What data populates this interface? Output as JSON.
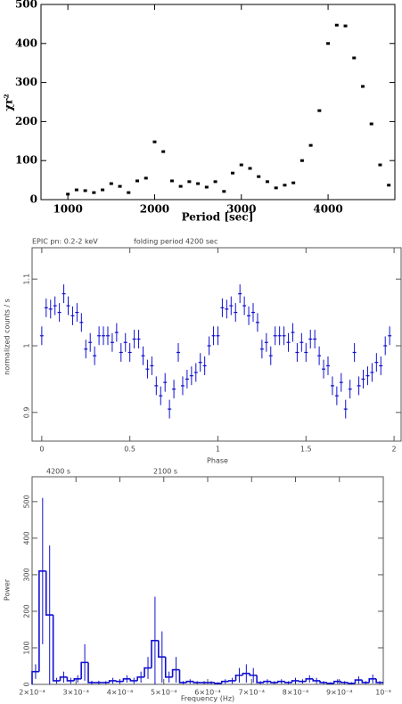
{
  "chart_data": [
    {
      "type": "scatter",
      "x_label": "Period [sec]",
      "y_label": "χr²",
      "color": "#000000",
      "x": [
        1000,
        1100,
        1200,
        1300,
        1400,
        1500,
        1600,
        1700,
        1800,
        1900,
        2000,
        2100,
        2200,
        2300,
        2400,
        2500,
        2600,
        2700,
        2800,
        2900,
        3000,
        3100,
        3200,
        3300,
        3400,
        3500,
        3600,
        3700,
        3800,
        3900,
        4000,
        4100,
        4200,
        4300,
        4400,
        4500,
        4600,
        4700
      ],
      "values": [
        14,
        25,
        23,
        18,
        25,
        41,
        34,
        18,
        48,
        55,
        148,
        123,
        48,
        34,
        46,
        41,
        32,
        46,
        21,
        68,
        89,
        80,
        59,
        46,
        30,
        37,
        43,
        100,
        139,
        228,
        400,
        447,
        445,
        363,
        290,
        194,
        89,
        37
      ],
      "xlim": [
        690,
        4770
      ],
      "ylim": [
        0,
        500
      ],
      "xticks": [
        1000,
        2000,
        3000,
        4000
      ],
      "yticks": [
        0,
        100,
        200,
        300,
        400,
        500
      ]
    },
    {
      "type": "errorbar",
      "x_label": "Phase",
      "y_label": "normalized counts / s",
      "annotations": [
        "EPIC pn: 0.2-2 keV",
        "folding period 4200 sec"
      ],
      "color": "#1010d0",
      "x": [
        0,
        0.025,
        0.05,
        0.075,
        0.1,
        0.125,
        0.15,
        0.175,
        0.2,
        0.225,
        0.25,
        0.275,
        0.3,
        0.325,
        0.35,
        0.375,
        0.4,
        0.425,
        0.45,
        0.475,
        0.5,
        0.525,
        0.55,
        0.575,
        0.6,
        0.625,
        0.65,
        0.675,
        0.7,
        0.725,
        0.75,
        0.775,
        0.8,
        0.825,
        0.85,
        0.875,
        0.9,
        0.925,
        0.95,
        0.975,
        1,
        1.025,
        1.05,
        1.075,
        1.1,
        1.125,
        1.15,
        1.175,
        1.2,
        1.225,
        1.25,
        1.275,
        1.3,
        1.325,
        1.35,
        1.375,
        1.4,
        1.425,
        1.45,
        1.475,
        1.5,
        1.525,
        1.55,
        1.575,
        1.6,
        1.625,
        1.65,
        1.675,
        1.7,
        1.725,
        1.75,
        1.775,
        1.8,
        1.825,
        1.85,
        1.875,
        1.9,
        1.925,
        1.95,
        1.975
      ],
      "values": [
        1.015,
        1.057,
        1.055,
        1.06,
        1.05,
        1.078,
        1.06,
        1.045,
        1.05,
        1.035,
        0.995,
        1.005,
        0.985,
        1.015,
        1.015,
        1.015,
        1.005,
        1.02,
        0.99,
        1.005,
        0.99,
        1.01,
        1.01,
        0.985,
        0.965,
        0.97,
        0.94,
        0.925,
        0.945,
        0.905,
        0.935,
        0.99,
        0.94,
        0.95,
        0.955,
        0.96,
        0.975,
        0.97,
        1.0,
        1.015,
        1.015,
        1.057,
        1.055,
        1.06,
        1.05,
        1.078,
        1.06,
        1.045,
        1.05,
        1.035,
        0.995,
        1.005,
        0.985,
        1.015,
        1.015,
        1.015,
        1.005,
        1.02,
        0.99,
        1.005,
        0.99,
        1.01,
        1.01,
        0.985,
        0.965,
        0.97,
        0.94,
        0.925,
        0.945,
        0.905,
        0.935,
        0.99,
        0.94,
        0.95,
        0.955,
        0.96,
        0.975,
        0.97,
        1.0,
        1.015
      ],
      "errors": [
        0.014,
        0.014,
        0.014,
        0.014,
        0.014,
        0.014,
        0.014,
        0.014,
        0.014,
        0.014,
        0.014,
        0.014,
        0.014,
        0.014,
        0.014,
        0.014,
        0.014,
        0.014,
        0.014,
        0.014,
        0.014,
        0.014,
        0.014,
        0.014,
        0.014,
        0.014,
        0.014,
        0.014,
        0.014,
        0.014,
        0.014,
        0.014,
        0.014,
        0.014,
        0.014,
        0.014,
        0.014,
        0.014,
        0.014,
        0.014,
        0.014,
        0.014,
        0.014,
        0.014,
        0.014,
        0.014,
        0.014,
        0.014,
        0.014,
        0.014,
        0.014,
        0.014,
        0.014,
        0.014,
        0.014,
        0.014,
        0.014,
        0.014,
        0.014,
        0.014,
        0.014,
        0.014,
        0.014,
        0.014,
        0.014,
        0.014,
        0.014,
        0.014,
        0.014,
        0.014,
        0.014,
        0.014,
        0.014,
        0.014,
        0.014,
        0.014,
        0.014,
        0.014,
        0.014,
        0.014
      ],
      "xlim": [
        -0.055,
        2.04
      ],
      "ylim": [
        0.857,
        1.147
      ],
      "xticks": [
        0,
        0.5,
        1,
        1.5,
        2
      ],
      "yticks": [
        0.9,
        1,
        1.1
      ]
    },
    {
      "type": "histogram",
      "x_label": "Frequency (Hz)",
      "y_label": "Power",
      "annotations": [
        "4200 s",
        "2100 s"
      ],
      "color": "#1010d0",
      "bins": [
        0.0002,
        0.000216,
        0.000232,
        0.000248,
        0.000264,
        0.00028,
        0.000296,
        0.000312,
        0.000328,
        0.000344,
        0.00036,
        0.000376,
        0.000392,
        0.000408,
        0.000424,
        0.00044,
        0.000456,
        0.000472,
        0.000488,
        0.000504,
        0.00052,
        0.000536,
        0.000552,
        0.000568,
        0.000584,
        0.0006,
        0.000616,
        0.000632,
        0.000648,
        0.000664,
        0.00068,
        0.000696,
        0.000712,
        0.000728,
        0.000744,
        0.00076,
        0.000776,
        0.000792,
        0.000808,
        0.000824,
        0.00084,
        0.000856,
        0.000872,
        0.000888,
        0.000904,
        0.00092,
        0.000936,
        0.000952,
        0.000968,
        0.000984,
        0.001
      ],
      "values": [
        35,
        310,
        190,
        10,
        20,
        10,
        15,
        60,
        5,
        5,
        5,
        10,
        8,
        15,
        10,
        20,
        45,
        120,
        75,
        20,
        40,
        5,
        8,
        5,
        5,
        5,
        3,
        8,
        10,
        25,
        30,
        25,
        5,
        8,
        5,
        8,
        5,
        10,
        8,
        15,
        10,
        5,
        3,
        8,
        5,
        3,
        12,
        5,
        15,
        5
      ],
      "errors": [
        20,
        200,
        190,
        8,
        15,
        8,
        10,
        50,
        5,
        5,
        4,
        8,
        6,
        10,
        8,
        15,
        30,
        120,
        70,
        15,
        35,
        4,
        6,
        4,
        4,
        4,
        3,
        6,
        8,
        20,
        25,
        20,
        4,
        6,
        4,
        6,
        4,
        8,
        6,
        10,
        8,
        4,
        3,
        6,
        4,
        3,
        10,
        4,
        12,
        4
      ],
      "xlim": [
        0.0002,
        0.001
      ],
      "ylim": [
        0,
        568
      ],
      "xticks": [
        {
          "value": 0.0002,
          "label": "2×10⁻⁴"
        },
        {
          "value": 0.0003,
          "label": "3×10⁻⁴"
        },
        {
          "value": 0.0004,
          "label": "4×10⁻⁴"
        },
        {
          "value": 0.0005,
          "label": "5×10⁻⁴"
        },
        {
          "value": 0.0006,
          "label": "6×10⁻⁴"
        },
        {
          "value": 0.0007,
          "label": "7×10⁻⁴"
        },
        {
          "value": 0.0008,
          "label": "8×10⁻⁴"
        },
        {
          "value": 0.0009,
          "label": "9×10⁻⁴"
        },
        {
          "value": 0.001,
          "label": "10⁻³"
        }
      ],
      "yticks": [
        0,
        100,
        200,
        300,
        400,
        500
      ]
    }
  ]
}
